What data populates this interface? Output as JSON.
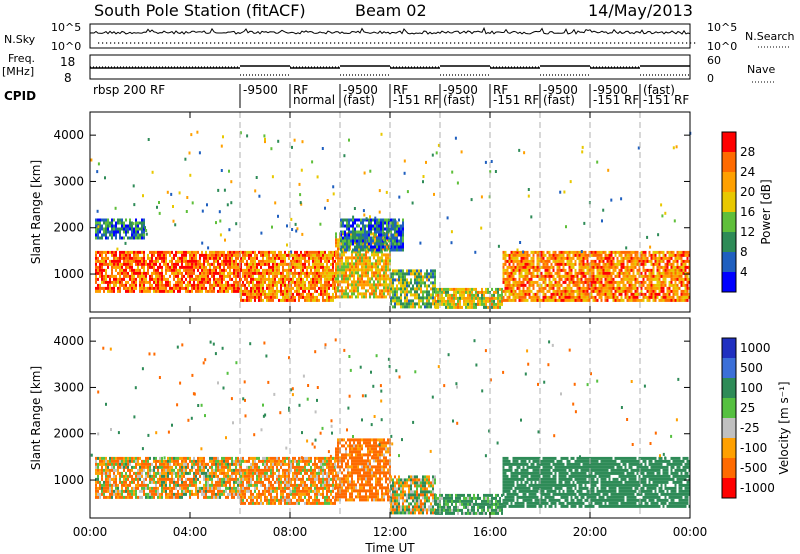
{
  "header": {
    "station": "South Pole Station (fitACF)",
    "beam": "Beam 02",
    "date": "14/May/2013"
  },
  "top_panels": {
    "nsky_label": "N.Sky",
    "nsearch_label": "N.Search",
    "nsky_ticks": [
      "10^5",
      "10^0"
    ],
    "nsearch_ticks": [
      "10^5",
      "10^0"
    ],
    "freq_label_1": "Freq.",
    "freq_label_2": "[MHz]",
    "freq_ticks": [
      "18",
      "8"
    ],
    "nave_label": "Nave",
    "nave_ticks": [
      "60",
      "0"
    ],
    "cpid_label": "CPID"
  },
  "cpid_segments": [
    {
      "start": 0.0,
      "end": 6.0,
      "labels": [
        "rbsp 200 RF"
      ]
    },
    {
      "start": 6.0,
      "end": 8.0,
      "labels": [
        "-9500"
      ]
    },
    {
      "start": 8.0,
      "end": 10.0,
      "labels": [
        "RF",
        "normal"
      ]
    },
    {
      "start": 10.0,
      "end": 12.0,
      "labels": [
        "-9500",
        "(fast)"
      ]
    },
    {
      "start": 12.0,
      "end": 14.0,
      "labels": [
        "RF",
        "-151 RF"
      ]
    },
    {
      "start": 14.0,
      "end": 16.0,
      "labels": [
        "-9500",
        "(fast)"
      ]
    },
    {
      "start": 16.0,
      "end": 18.0,
      "labels": [
        "RF",
        "-151 RF"
      ]
    },
    {
      "start": 18.0,
      "end": 20.0,
      "labels": [
        "-9500",
        "(fast)"
      ]
    },
    {
      "start": 20.0,
      "end": 22.0,
      "labels": [
        "-9500",
        "-151 RF"
      ]
    },
    {
      "start": 22.0,
      "end": 24.0,
      "labels": [
        "(fast)",
        "-151 RF"
      ]
    }
  ],
  "chart_data": [
    {
      "type": "heatmap",
      "name": "Power",
      "ylabel": "Slant Range [km]",
      "xlim": [
        0,
        24
      ],
      "ylim": [
        180,
        4500
      ],
      "yticks": [
        1000,
        2000,
        3000,
        4000
      ],
      "colorbar": {
        "label": "Power [dB]",
        "ticks": [
          "28",
          "24",
          "20",
          "16",
          "12",
          "8",
          "4"
        ],
        "colors": [
          "#ff0000",
          "#ff6a00",
          "#ffa000",
          "#e8c800",
          "#5fbf3a",
          "#2e8b57",
          "#1f5fbf",
          "#0000ff"
        ]
      },
      "regions": [
        {
          "x": [
            0.2,
            6.0
          ],
          "y": [
            650,
            1500
          ],
          "level": 26
        },
        {
          "x": [
            6.0,
            9.8
          ],
          "y": [
            400,
            1500
          ],
          "level": 24
        },
        {
          "x": [
            9.8,
            12.0
          ],
          "y": [
            500,
            1900
          ],
          "level": 20
        },
        {
          "x": [
            12.0,
            13.8
          ],
          "y": [
            300,
            1100
          ],
          "level": 14
        },
        {
          "x": [
            13.8,
            16.5
          ],
          "y": [
            250,
            700
          ],
          "level": 18
        },
        {
          "x": [
            16.5,
            24.0
          ],
          "y": [
            400,
            1500
          ],
          "level": 24
        },
        {
          "x": [
            0.2,
            2.2
          ],
          "y": [
            1800,
            2200
          ],
          "level": 8
        },
        {
          "x": [
            10.0,
            12.5
          ],
          "y": [
            1500,
            2200
          ],
          "level": 8
        }
      ]
    },
    {
      "type": "heatmap",
      "name": "Velocity",
      "xlabel": "Time UT",
      "ylabel": "Slant Range [km]",
      "xlim": [
        0,
        24
      ],
      "ylim": [
        180,
        4500
      ],
      "xticks": [
        "00:00",
        "04:00",
        "08:00",
        "12:00",
        "16:00",
        "20:00",
        "00:00"
      ],
      "yticks": [
        1000,
        2000,
        3000,
        4000
      ],
      "colorbar": {
        "label": "Velocity [m s⁻¹]",
        "ticks": [
          "1000",
          "500",
          "100",
          "25",
          "-25",
          "-100",
          "-500",
          "-1000"
        ],
        "colors": [
          "#2030c0",
          "#3b6fd8",
          "#2e8b57",
          "#55c040",
          "#c0c0c0",
          "#ffa000",
          "#ff6a00",
          "#ff0000"
        ]
      },
      "regions": [
        {
          "x": [
            0.2,
            6.0
          ],
          "y": [
            650,
            1500
          ],
          "level": -60
        },
        {
          "x": [
            6.0,
            9.8
          ],
          "y": [
            500,
            1500
          ],
          "level": -120
        },
        {
          "x": [
            9.8,
            12.0
          ],
          "y": [
            600,
            1900
          ],
          "level": -200
        },
        {
          "x": [
            12.0,
            13.8
          ],
          "y": [
            300,
            1100
          ],
          "level": 20
        },
        {
          "x": [
            13.8,
            16.5
          ],
          "y": [
            250,
            700
          ],
          "level": 200
        },
        {
          "x": [
            16.5,
            24.0
          ],
          "y": [
            400,
            1500
          ],
          "level": 300
        }
      ]
    }
  ]
}
